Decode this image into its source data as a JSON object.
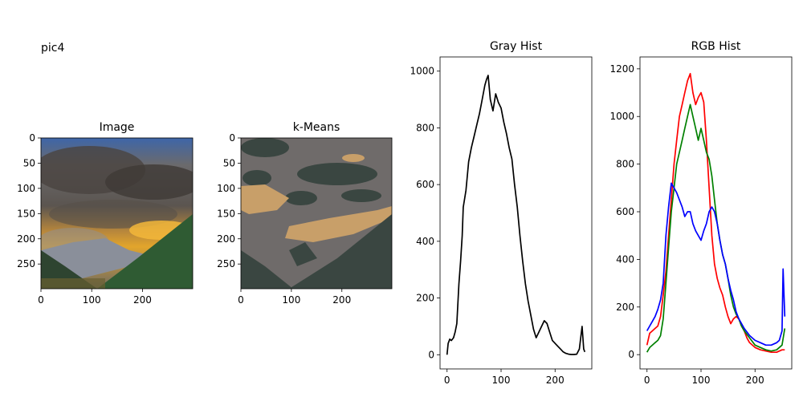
{
  "figure": {
    "suptitle": "pic4"
  },
  "chart_data": [
    {
      "type": "image",
      "title": "Image",
      "xlim": [
        0,
        299
      ],
      "ylim": [
        299,
        0
      ],
      "xticks": [
        "0",
        "100",
        "200"
      ],
      "yticks": [
        "0",
        "50",
        "100",
        "150",
        "200",
        "250"
      ]
    },
    {
      "type": "image",
      "title": "k-Means",
      "xlim": [
        0,
        299
      ],
      "ylim": [
        299,
        0
      ],
      "xticks": [
        "0",
        "100",
        "200"
      ],
      "yticks": [
        "0",
        "50",
        "100",
        "150",
        "200",
        "250"
      ],
      "cluster_colors": [
        "#3a4641",
        "#6f6b6a",
        "#c89f69"
      ]
    },
    {
      "type": "line",
      "title": "Gray Hist",
      "xlim": [
        -13,
        268
      ],
      "ylim": [
        -50,
        1050
      ],
      "xticks": [
        "0",
        "100",
        "200"
      ],
      "yticks": [
        "0",
        "200",
        "400",
        "600",
        "800",
        "1000"
      ],
      "series": [
        {
          "color": "#000000",
          "points": [
            [
              0,
              0
            ],
            [
              2,
              40
            ],
            [
              5,
              55
            ],
            [
              8,
              50
            ],
            [
              12,
              60
            ],
            [
              15,
              80
            ],
            [
              18,
              110
            ],
            [
              20,
              180
            ],
            [
              22,
              250
            ],
            [
              25,
              330
            ],
            [
              28,
              420
            ],
            [
              30,
              520
            ],
            [
              35,
              580
            ],
            [
              40,
              680
            ],
            [
              45,
              730
            ],
            [
              50,
              770
            ],
            [
              55,
              810
            ],
            [
              60,
              850
            ],
            [
              64,
              890
            ],
            [
              67,
              920
            ],
            [
              70,
              950
            ],
            [
              73,
              970
            ],
            [
              76,
              985
            ],
            [
              80,
              900
            ],
            [
              85,
              860
            ],
            [
              90,
              920
            ],
            [
              95,
              890
            ],
            [
              100,
              870
            ],
            [
              105,
              820
            ],
            [
              110,
              780
            ],
            [
              115,
              730
            ],
            [
              120,
              690
            ],
            [
              125,
              600
            ],
            [
              130,
              520
            ],
            [
              135,
              420
            ],
            [
              140,
              330
            ],
            [
              145,
              250
            ],
            [
              150,
              190
            ],
            [
              155,
              140
            ],
            [
              160,
              90
            ],
            [
              165,
              60
            ],
            [
              170,
              80
            ],
            [
              175,
              100
            ],
            [
              180,
              120
            ],
            [
              185,
              110
            ],
            [
              190,
              80
            ],
            [
              195,
              50
            ],
            [
              200,
              40
            ],
            [
              205,
              30
            ],
            [
              210,
              20
            ],
            [
              215,
              10
            ],
            [
              220,
              5
            ],
            [
              225,
              2
            ],
            [
              230,
              1
            ],
            [
              235,
              1
            ],
            [
              240,
              2
            ],
            [
              245,
              20
            ],
            [
              250,
              100
            ],
            [
              253,
              20
            ],
            [
              255,
              10
            ]
          ]
        }
      ]
    },
    {
      "type": "line",
      "title": "RGB Hist",
      "xlim": [
        -13,
        268
      ],
      "ylim": [
        -60,
        1250
      ],
      "xticks": [
        "0",
        "100",
        "200"
      ],
      "yticks": [
        "0",
        "200",
        "400",
        "600",
        "800",
        "1000",
        "1200"
      ],
      "series": [
        {
          "color": "#ff0000",
          "points": [
            [
              0,
              40
            ],
            [
              5,
              90
            ],
            [
              10,
              100
            ],
            [
              15,
              110
            ],
            [
              20,
              120
            ],
            [
              25,
              160
            ],
            [
              30,
              250
            ],
            [
              35,
              350
            ],
            [
              40,
              500
            ],
            [
              45,
              650
            ],
            [
              50,
              800
            ],
            [
              55,
              900
            ],
            [
              60,
              1000
            ],
            [
              65,
              1050
            ],
            [
              70,
              1100
            ],
            [
              75,
              1150
            ],
            [
              80,
              1180
            ],
            [
              85,
              1100
            ],
            [
              90,
              1050
            ],
            [
              95,
              1080
            ],
            [
              100,
              1100
            ],
            [
              105,
              1060
            ],
            [
              110,
              900
            ],
            [
              115,
              700
            ],
            [
              120,
              500
            ],
            [
              125,
              380
            ],
            [
              130,
              320
            ],
            [
              135,
              280
            ],
            [
              140,
              250
            ],
            [
              145,
              200
            ],
            [
              150,
              160
            ],
            [
              155,
              130
            ],
            [
              160,
              150
            ],
            [
              165,
              160
            ],
            [
              170,
              150
            ],
            [
              175,
              120
            ],
            [
              180,
              100
            ],
            [
              185,
              70
            ],
            [
              190,
              50
            ],
            [
              195,
              40
            ],
            [
              200,
              30
            ],
            [
              210,
              20
            ],
            [
              220,
              15
            ],
            [
              230,
              10
            ],
            [
              240,
              10
            ],
            [
              250,
              20
            ],
            [
              255,
              20
            ]
          ]
        },
        {
          "color": "#008000",
          "points": [
            [
              0,
              10
            ],
            [
              5,
              30
            ],
            [
              10,
              40
            ],
            [
              15,
              50
            ],
            [
              20,
              60
            ],
            [
              25,
              80
            ],
            [
              30,
              150
            ],
            [
              35,
              300
            ],
            [
              40,
              450
            ],
            [
              45,
              600
            ],
            [
              50,
              700
            ],
            [
              55,
              800
            ],
            [
              60,
              850
            ],
            [
              65,
              900
            ],
            [
              70,
              950
            ],
            [
              75,
              1000
            ],
            [
              80,
              1050
            ],
            [
              85,
              1000
            ],
            [
              90,
              950
            ],
            [
              95,
              900
            ],
            [
              100,
              950
            ],
            [
              105,
              900
            ],
            [
              110,
              850
            ],
            [
              115,
              820
            ],
            [
              120,
              750
            ],
            [
              125,
              650
            ],
            [
              130,
              550
            ],
            [
              135,
              480
            ],
            [
              140,
              420
            ],
            [
              145,
              380
            ],
            [
              150,
              320
            ],
            [
              155,
              250
            ],
            [
              160,
              200
            ],
            [
              165,
              170
            ],
            [
              170,
              150
            ],
            [
              175,
              120
            ],
            [
              180,
              100
            ],
            [
              190,
              70
            ],
            [
              200,
              40
            ],
            [
              210,
              30
            ],
            [
              220,
              20
            ],
            [
              230,
              15
            ],
            [
              240,
              20
            ],
            [
              250,
              40
            ],
            [
              255,
              110
            ]
          ]
        },
        {
          "color": "#0000ff",
          "points": [
            [
              0,
              100
            ],
            [
              5,
              120
            ],
            [
              10,
              140
            ],
            [
              15,
              160
            ],
            [
              20,
              190
            ],
            [
              25,
              230
            ],
            [
              30,
              300
            ],
            [
              35,
              500
            ],
            [
              40,
              620
            ],
            [
              45,
              720
            ],
            [
              50,
              700
            ],
            [
              55,
              680
            ],
            [
              60,
              650
            ],
            [
              65,
              620
            ],
            [
              70,
              580
            ],
            [
              75,
              600
            ],
            [
              80,
              600
            ],
            [
              85,
              550
            ],
            [
              90,
              520
            ],
            [
              95,
              500
            ],
            [
              100,
              480
            ],
            [
              105,
              520
            ],
            [
              110,
              550
            ],
            [
              115,
              600
            ],
            [
              120,
              620
            ],
            [
              125,
              600
            ],
            [
              130,
              550
            ],
            [
              135,
              480
            ],
            [
              140,
              420
            ],
            [
              145,
              380
            ],
            [
              150,
              320
            ],
            [
              155,
              270
            ],
            [
              160,
              230
            ],
            [
              165,
              180
            ],
            [
              170,
              150
            ],
            [
              180,
              110
            ],
            [
              190,
              80
            ],
            [
              200,
              60
            ],
            [
              210,
              50
            ],
            [
              220,
              40
            ],
            [
              230,
              40
            ],
            [
              240,
              50
            ],
            [
              245,
              60
            ],
            [
              250,
              100
            ],
            [
              252,
              360
            ],
            [
              255,
              160
            ]
          ]
        }
      ]
    }
  ]
}
